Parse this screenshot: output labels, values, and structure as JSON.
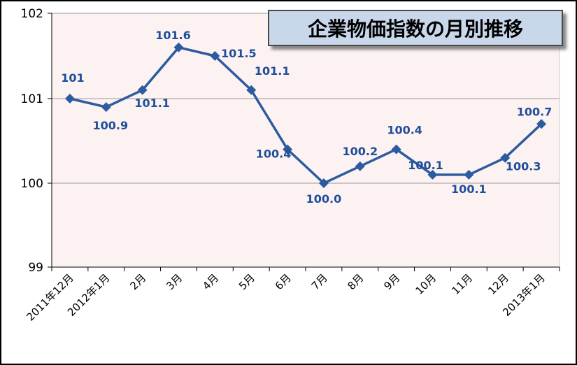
{
  "chart_data": {
    "type": "line",
    "title": "企業物価指数の月別推移",
    "categories": [
      "2011年12月",
      "2012年1月",
      "2月",
      "3月",
      "4月",
      "5月",
      "6月",
      "7月",
      "8月",
      "9月",
      "10月",
      "11月",
      "12月",
      "2013年1月"
    ],
    "series": [
      {
        "values": [
          101.0,
          100.9,
          101.1,
          101.6,
          101.5,
          101.1,
          100.4,
          100.0,
          100.2,
          100.4,
          100.1,
          100.1,
          100.3,
          100.7
        ],
        "labels": [
          "101",
          "100.9",
          "101.1",
          "101.6",
          "101.5",
          "101.1",
          "100.4",
          "100.0",
          "100.2",
          "100.4",
          "100.1",
          "100.1",
          "100.3",
          "100.7"
        ]
      }
    ],
    "y_ticks": [
      99,
      100,
      101,
      102
    ],
    "y_tick_labels": [
      "99",
      "100",
      "101",
      "102"
    ],
    "ylim": [
      99.5,
      102
    ],
    "xlabel": "",
    "ylabel": "",
    "grid": true,
    "marker": "diamond",
    "colors": {
      "line": "#2c5c9f",
      "marker": "#2c5c9f",
      "data_label": "#1f4e9a",
      "plot_bg": "#fdf2f2",
      "title_bg": "#c9d7ea",
      "grid": "#999999"
    }
  }
}
